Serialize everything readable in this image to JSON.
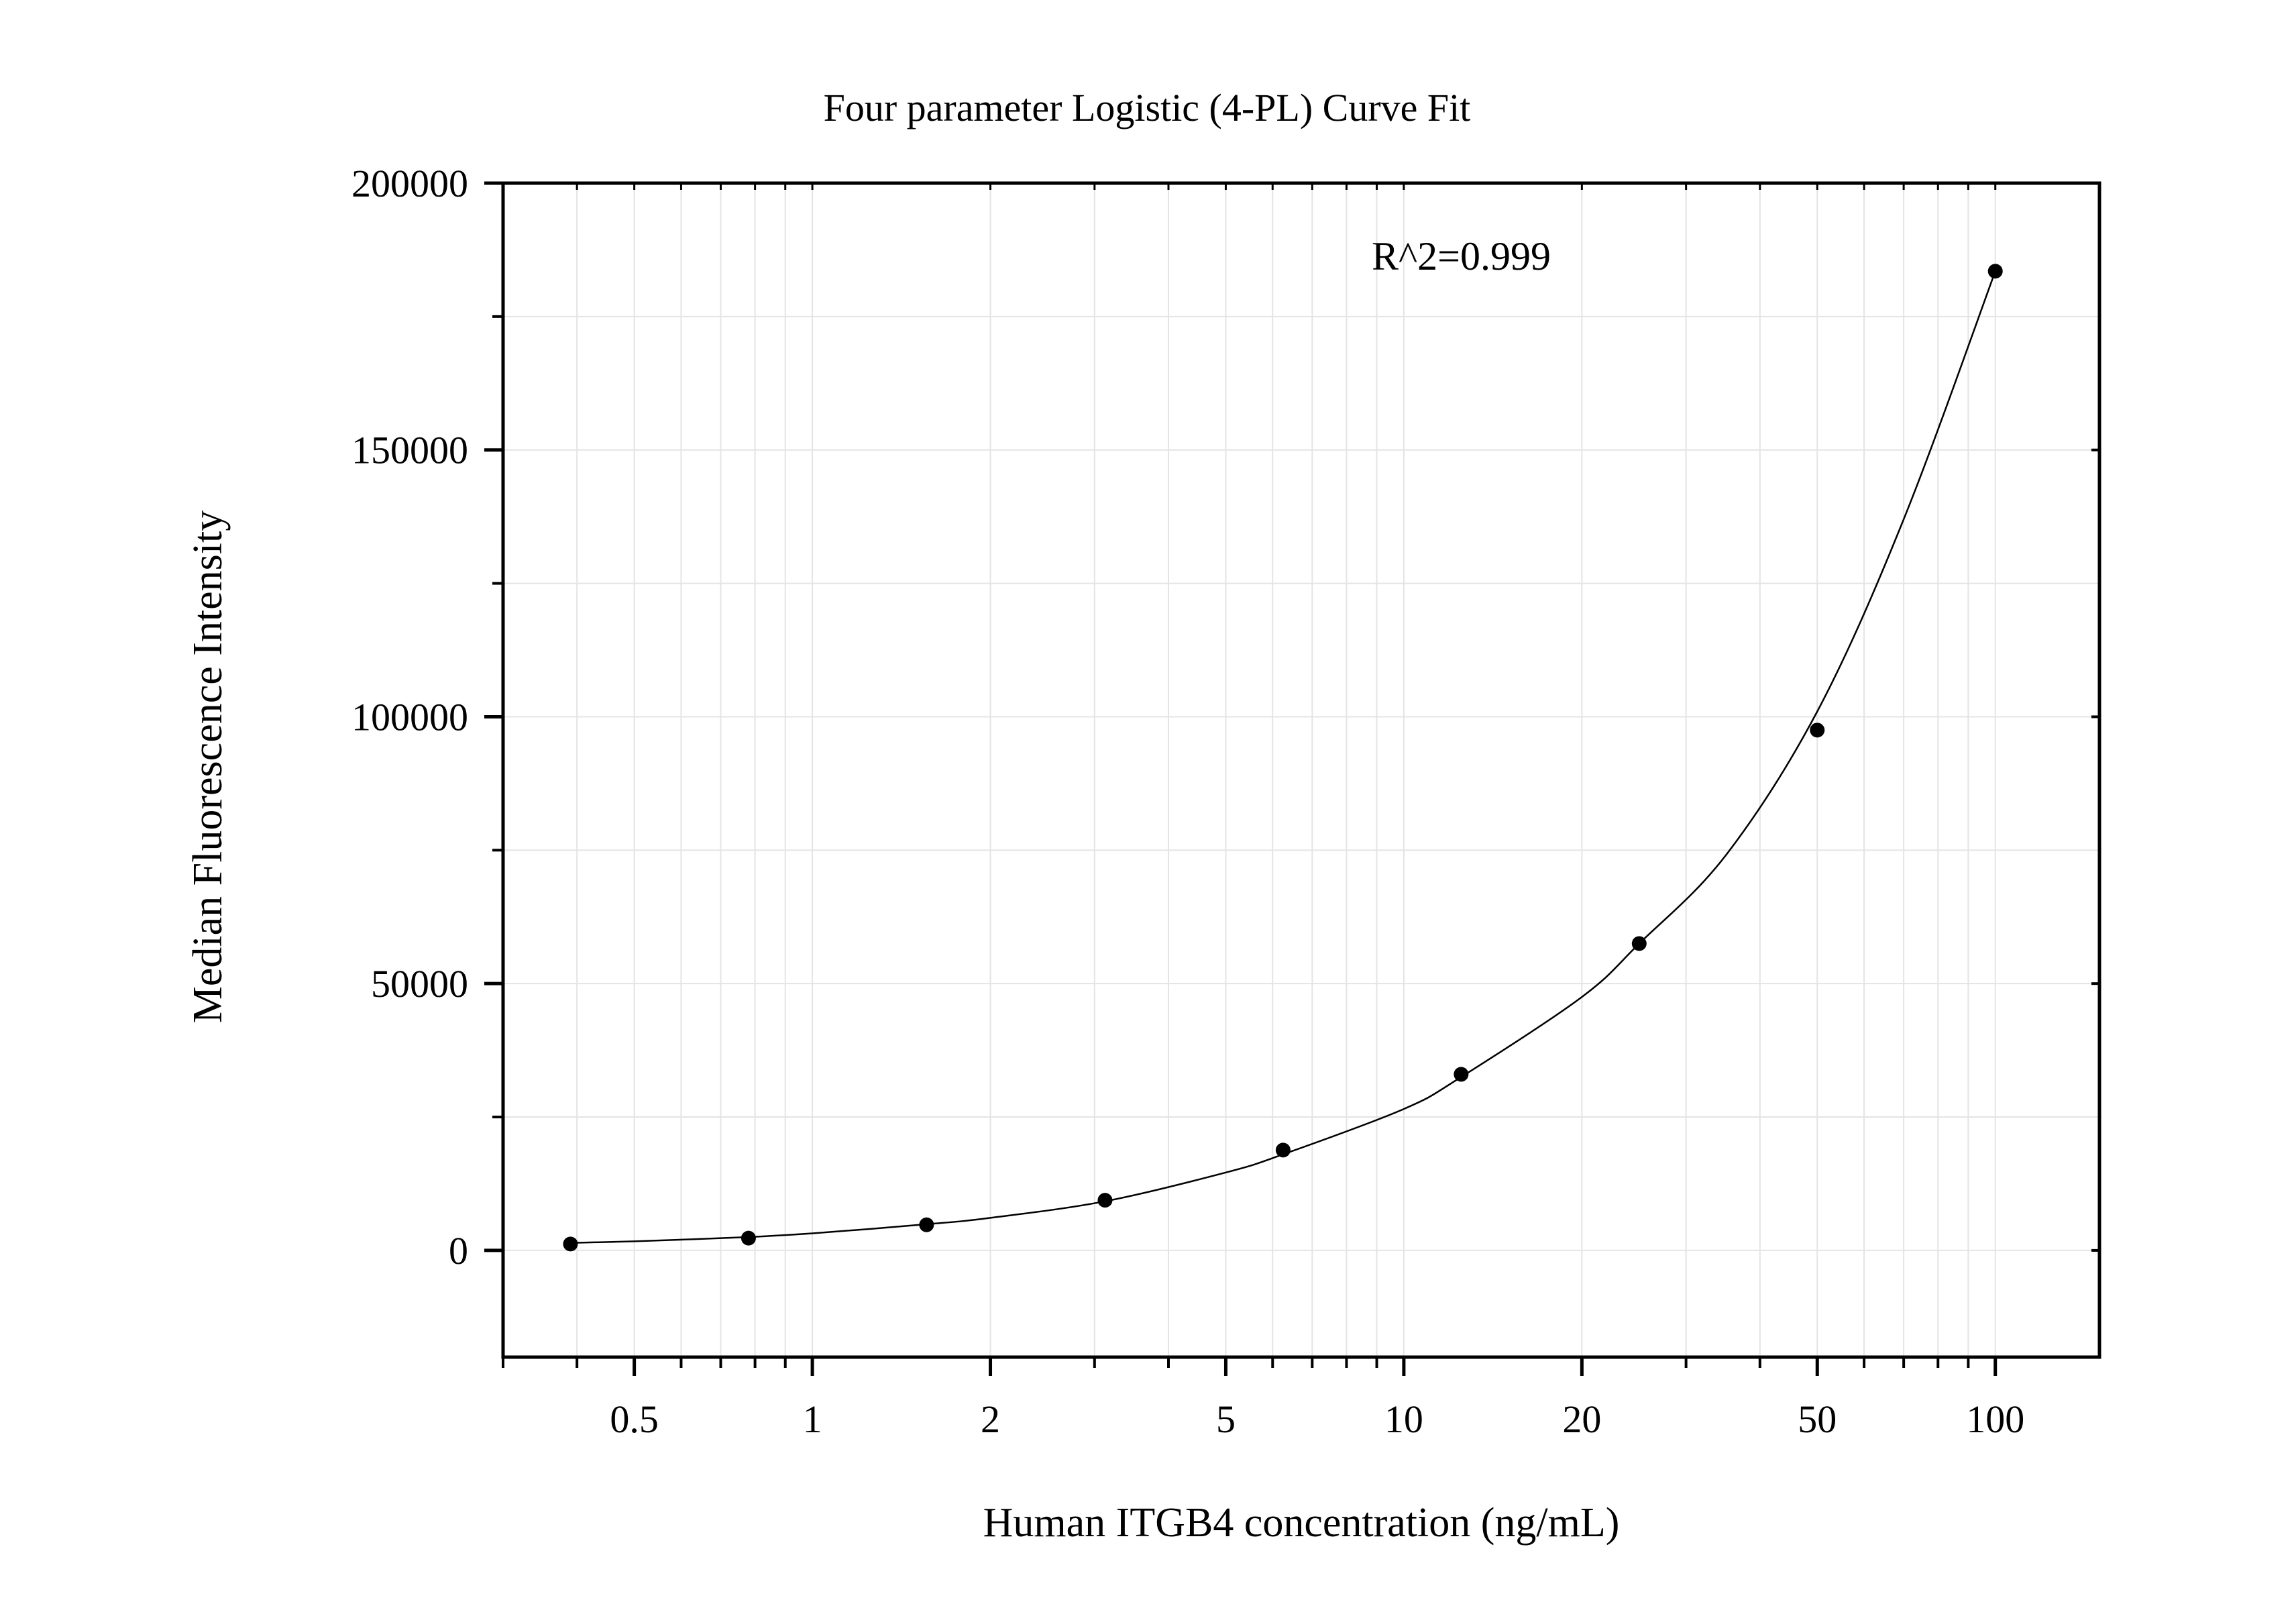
{
  "chart_data": {
    "type": "scatter",
    "title": "Four parameter Logistic (4-PL) Curve Fit",
    "xlabel": "Human ITGB4 concentration (ng/mL)",
    "ylabel": "Median Fluorescence Intensity",
    "annotation": "R^2=0.999",
    "x_scale": "log",
    "xlim": [
      0.3,
      150
    ],
    "ylim": [
      -20000,
      200000
    ],
    "x_ticks": [
      {
        "value": 0.5,
        "label": "0.5"
      },
      {
        "value": 1,
        "label": "1"
      },
      {
        "value": 2,
        "label": "2"
      },
      {
        "value": 5,
        "label": "5"
      },
      {
        "value": 10,
        "label": "10"
      },
      {
        "value": 20,
        "label": "20"
      },
      {
        "value": 50,
        "label": "50"
      },
      {
        "value": 100,
        "label": "100"
      }
    ],
    "y_ticks": [
      {
        "value": 0,
        "label": "0"
      },
      {
        "value": 50000,
        "label": "50000"
      },
      {
        "value": 100000,
        "label": "100000"
      },
      {
        "value": 150000,
        "label": "150000"
      },
      {
        "value": 200000,
        "label": "200000"
      }
    ],
    "y_minor_ticks": [
      25000,
      75000,
      125000,
      175000
    ],
    "grid": true,
    "colors": {
      "points": "#000000",
      "curve": "#000000",
      "grid": "#e4e4e4",
      "axis": "#000000"
    },
    "series": [
      {
        "points": [
          {
            "x": 0.39,
            "y": 1200
          },
          {
            "x": 0.78,
            "y": 2300
          },
          {
            "x": 1.56,
            "y": 4800
          },
          {
            "x": 3.125,
            "y": 9400
          },
          {
            "x": 6.25,
            "y": 18800
          },
          {
            "x": 12.5,
            "y": 33000
          },
          {
            "x": 25,
            "y": 57500
          },
          {
            "x": 50,
            "y": 97500
          },
          {
            "x": 100,
            "y": 183500
          }
        ]
      }
    ],
    "fit_curve": {
      "points": [
        {
          "x": 0.39,
          "y": 1400
        },
        {
          "x": 0.5,
          "y": 1700
        },
        {
          "x": 0.78,
          "y": 2500
        },
        {
          "x": 1,
          "y": 3200
        },
        {
          "x": 1.56,
          "y": 4900
        },
        {
          "x": 2,
          "y": 6100
        },
        {
          "x": 3.125,
          "y": 9200
        },
        {
          "x": 5,
          "y": 14600
        },
        {
          "x": 6.25,
          "y": 18000
        },
        {
          "x": 10,
          "y": 26500
        },
        {
          "x": 12.5,
          "y": 32500
        },
        {
          "x": 20,
          "y": 47500
        },
        {
          "x": 25,
          "y": 57500
        },
        {
          "x": 35,
          "y": 74000
        },
        {
          "x": 50,
          "y": 101000
        },
        {
          "x": 70,
          "y": 137000
        },
        {
          "x": 100,
          "y": 183500
        }
      ]
    }
  }
}
